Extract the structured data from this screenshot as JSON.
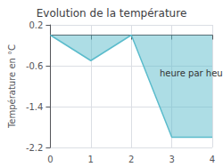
{
  "chart_data": {
    "type": "area",
    "title": "Evolution de la température",
    "ylabel": "Température en °C",
    "x": [
      0,
      1,
      2,
      3,
      4
    ],
    "series": [
      {
        "values": [
          0.0,
          -0.5,
          0.0,
          -2.0,
          -2.0
        ],
        "color": "#5bbccc"
      }
    ],
    "xlim": [
      0,
      4
    ],
    "ylim": [
      -2.2,
      0.2
    ],
    "xticks": [
      0,
      1,
      2,
      3,
      4
    ],
    "yticks": [
      0.2,
      -0.6,
      -1.4,
      -2.2
    ],
    "grid": true,
    "annotations": [
      {
        "text": "heure par heure",
        "x": 2.7,
        "y": -0.75
      }
    ]
  }
}
